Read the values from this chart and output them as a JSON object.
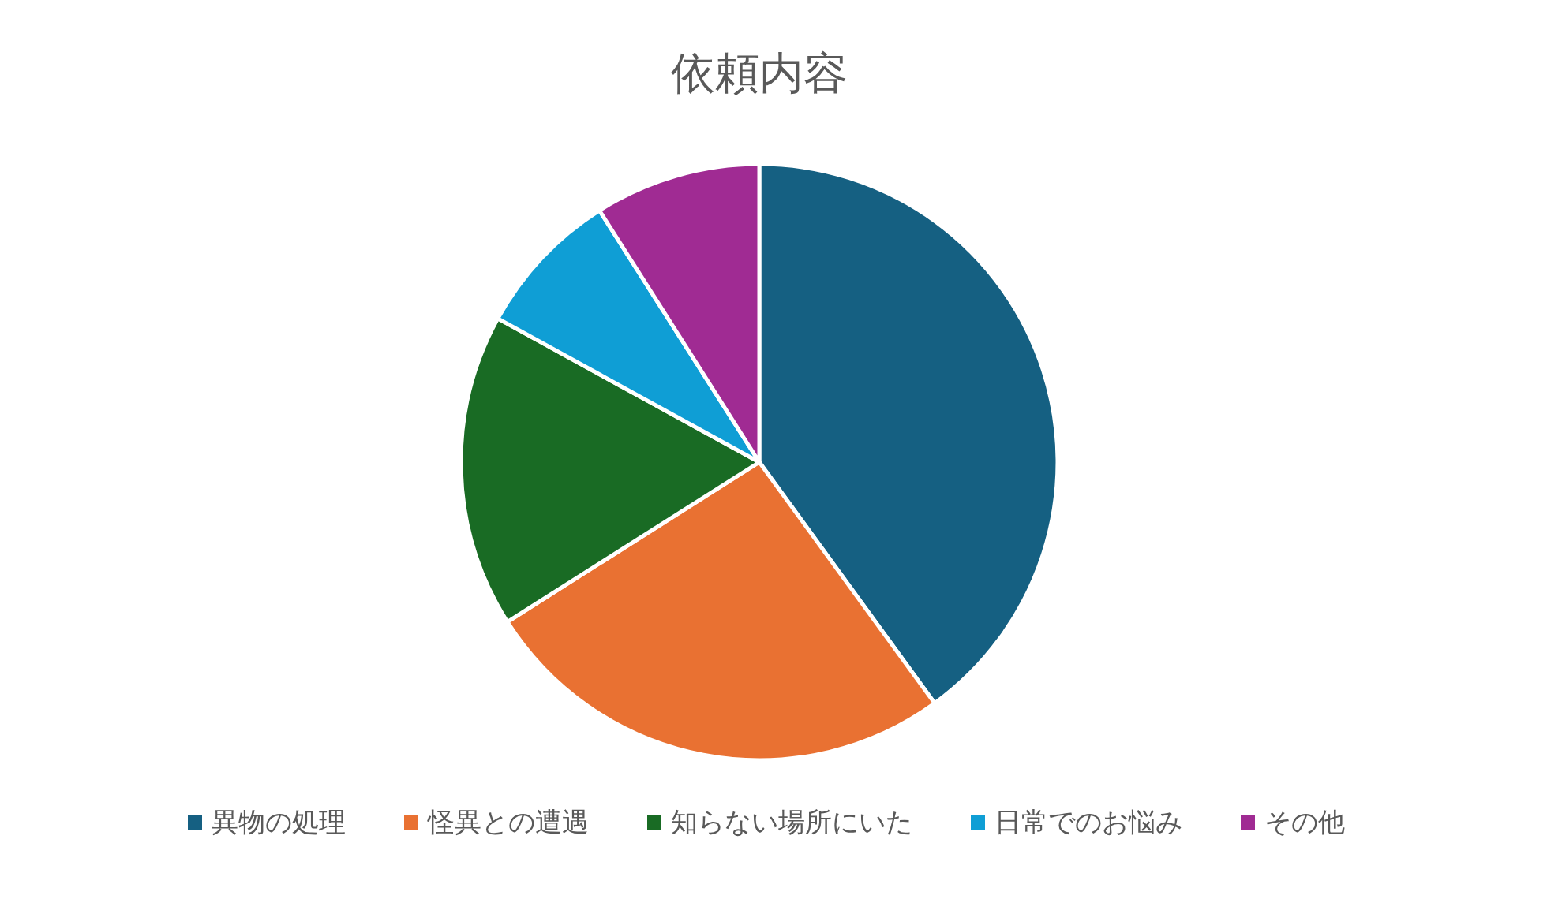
{
  "chart_data": {
    "type": "pie",
    "title": "依頼内容",
    "categories": [
      "異物の処理",
      "怪異との遭遇",
      "知らない場所にいた",
      "日常でのお悩み",
      "その他"
    ],
    "values": [
      40,
      26,
      17,
      8,
      9
    ],
    "colors": [
      "#156082",
      "#e97132",
      "#196b24",
      "#0f9ed5",
      "#a02b93"
    ],
    "legend": "bottom"
  }
}
